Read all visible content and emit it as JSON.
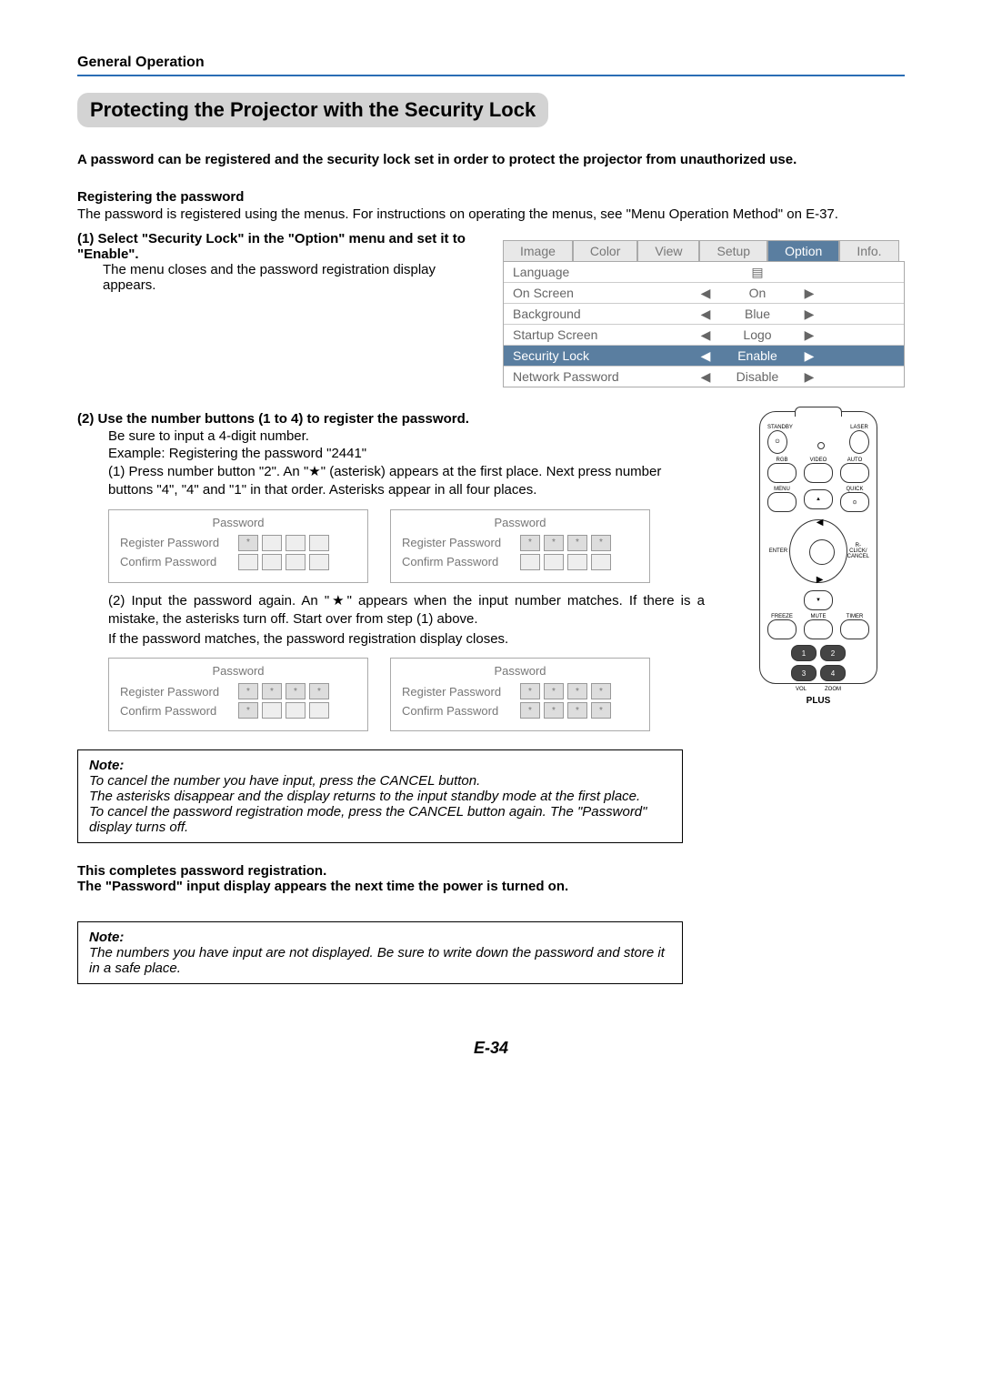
{
  "header": {
    "section": "General Operation"
  },
  "title": "Protecting the Projector with the Security Lock",
  "intro": "A password can be registered and the security lock set in order to protect the projector from unauthorized use.",
  "reg": {
    "heading": "Registering the password",
    "desc": "The password is registered using the menus. For instructions on operating the menus, see \"Menu Operation Method\" on E-37."
  },
  "step1": {
    "num": "(1)",
    "title": "Select \"Security Lock\" in the \"Option\" menu and set it to \"Enable\".",
    "desc": "The menu closes and the password registration display appears."
  },
  "menu": {
    "tabs": [
      "Image",
      "Color",
      "View",
      "Setup",
      "Option",
      "Info."
    ],
    "activeTab": 4,
    "rows": [
      {
        "label": "Language",
        "val": "",
        "icon": "▤",
        "sel": false,
        "arrows": false
      },
      {
        "label": "On Screen",
        "val": "On",
        "sel": false,
        "arrows": true
      },
      {
        "label": "Background",
        "val": "Blue",
        "sel": false,
        "arrows": true
      },
      {
        "label": "Startup Screen",
        "val": "Logo",
        "sel": false,
        "arrows": true
      },
      {
        "label": "Security Lock",
        "val": "Enable",
        "sel": true,
        "arrows": true
      },
      {
        "label": "Network Password",
        "val": "Disable",
        "sel": false,
        "arrows": true
      }
    ]
  },
  "step2": {
    "num": "(2)",
    "title": "Use the number buttons (1 to 4) to register the password.",
    "l1": "Be sure to input a 4-digit number.",
    "l2": "Example: Registering the password \"2441\"",
    "s1num": "(1)",
    "s1": "Press number button \"2\". An \"★\" (asterisk) appears at the first place. Next press number buttons \"4\", \"4\" and \"1\" in that order. Asterisks appear in all four places.",
    "s2num": "(2)",
    "s2": "Input the password again. An \"★\" appears when the input number matches. If there is a mistake, the asterisks turn off. Start over from step (1) above.",
    "s2b": "If the password matches, the password registration display closes."
  },
  "pw": {
    "title": "Password",
    "reg": "Register Password",
    "conf": "Confirm Password",
    "panels1": {
      "a": {
        "reg": [
          true,
          false,
          false,
          false
        ],
        "conf": [
          false,
          false,
          false,
          false
        ]
      },
      "b": {
        "reg": [
          true,
          true,
          true,
          true
        ],
        "conf": [
          false,
          false,
          false,
          false
        ]
      }
    },
    "panels2": {
      "a": {
        "reg": [
          true,
          true,
          true,
          true
        ],
        "conf": [
          true,
          false,
          false,
          false
        ]
      },
      "b": {
        "reg": [
          true,
          true,
          true,
          true
        ],
        "conf": [
          true,
          true,
          true,
          true
        ]
      }
    }
  },
  "note1": {
    "label": "Note:",
    "l1": "To cancel the number you have input, press the CANCEL button.",
    "l2": "The asterisks disappear and the display returns to the input standby mode at the first place.",
    "l3": "To cancel the password registration mode, press the CANCEL button again. The \"Password\" display turns off."
  },
  "final": {
    "l1": "This completes password registration.",
    "l2": "The \"Password\" input display appears the next time the power is turned on."
  },
  "note2": {
    "label": "Note:",
    "l1": "The numbers you have input are not displayed. Be sure to write down the password and store it in a safe place."
  },
  "remote": {
    "row1": [
      "STANDBY",
      "",
      "LASER"
    ],
    "row2": [
      "RGB",
      "VIDEO",
      "AUTO"
    ],
    "row3": [
      "MENU",
      "",
      "QUICK"
    ],
    "enter": "ENTER",
    "cancel": "R-CLICK/\nCANCEL",
    "row4": [
      "FREEZE",
      "MUTE",
      "TIMER"
    ],
    "nums": [
      "1",
      "2",
      "3",
      "4"
    ],
    "vol": "VOL",
    "zoom": "ZOOM",
    "brand": "PLUS"
  },
  "pagenum": "E-34",
  "colors": {
    "accent": "#5a7ea0",
    "rule": "#2a6db5"
  }
}
